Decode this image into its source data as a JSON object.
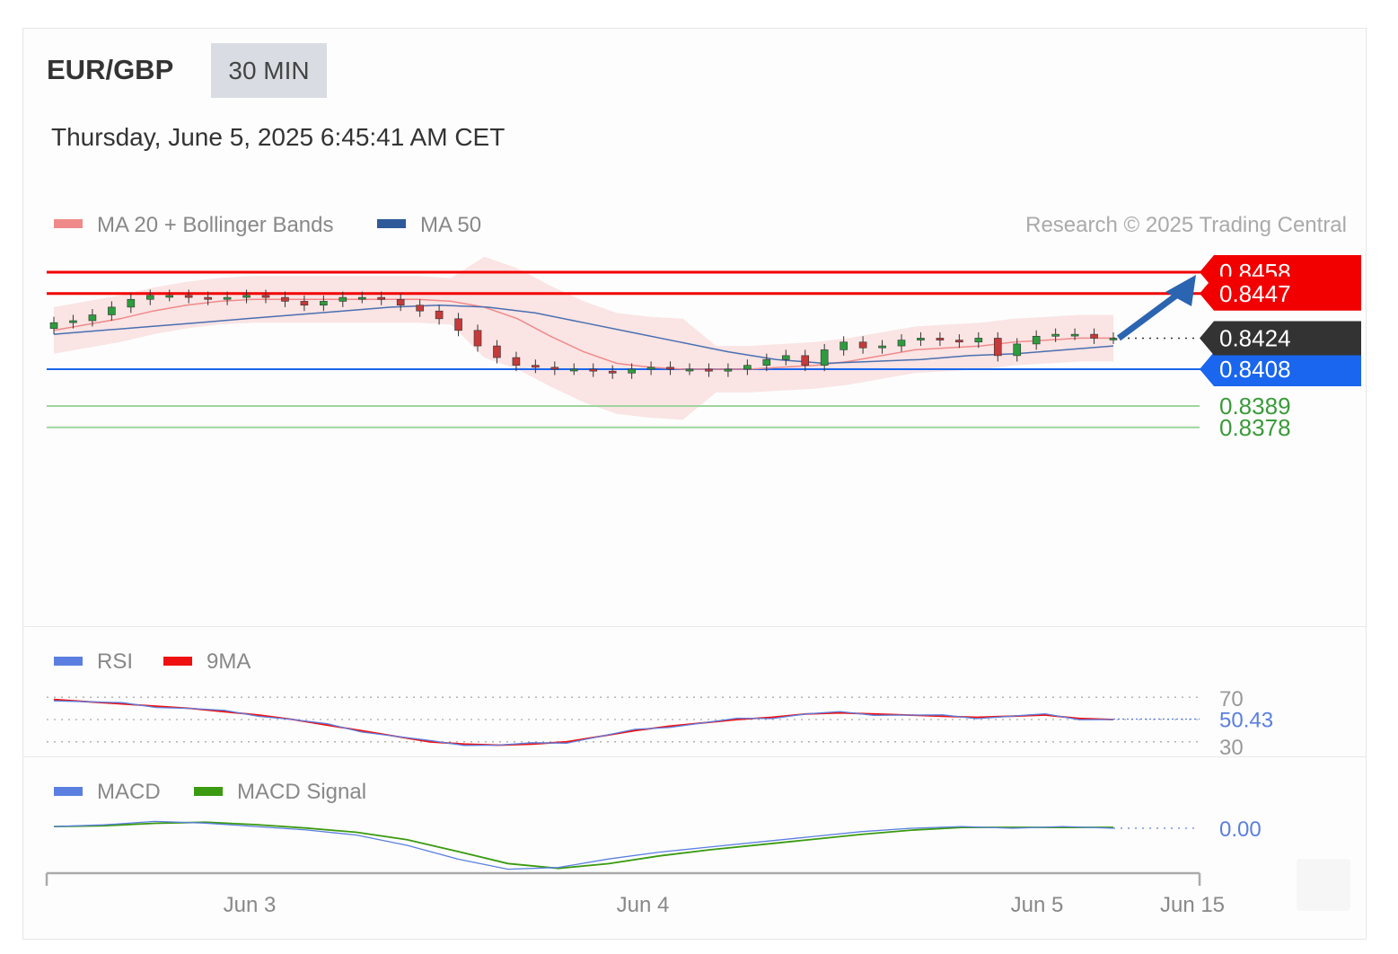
{
  "header": {
    "pair": "EUR/GBP",
    "timeframe": "30 MIN",
    "datetime": "Thursday, June 5, 2025 6:45:41 AM CET"
  },
  "legend": {
    "ma20": "MA 20 + Bollinger Bands",
    "ma50": "MA 50",
    "research": "Research © 2025 Trading Central",
    "rsi": "RSI",
    "rsi_ma": "9MA",
    "macd": "MACD",
    "macd_signal": "MACD Signal"
  },
  "colors": {
    "resistance": "#f20000",
    "support": "#1a66ee",
    "target": "#3a9a3a",
    "current": "#333333",
    "arrow": "#2b64b0",
    "up_candle": "#2e9c3e",
    "down_candle": "#c53a3a",
    "bollinger": "#f6c5c5",
    "ma20": "#f08a8a",
    "ma50": "#4a6fb0",
    "rsi": "#5b7fe0",
    "rsi_ma": "#f01010",
    "macd": "#5b7fe0",
    "macd_signal": "#3a9a10"
  },
  "chart_data": {
    "type": "line",
    "title": "EUR/GBP 30 MIN",
    "ylim": [
      0.8366,
      0.8471
    ],
    "x_ticks": [
      "Jun 3",
      "Jun 4",
      "Jun 5",
      "Jun 15"
    ],
    "price_levels": {
      "resistances": [
        0.8458,
        0.8447
      ],
      "current": 0.8424,
      "pivot": 0.8408,
      "supports": [
        0.8389,
        0.8378
      ]
    },
    "level_labels": [
      "0.8458",
      "0.8447",
      "0.8424",
      "0.8408",
      "0.8389",
      "0.8378"
    ],
    "price_series": {
      "name": "EUR/GBP",
      "close": [
        0.8432,
        0.8433,
        0.8436,
        0.844,
        0.8444,
        0.8446,
        0.8446,
        0.8445,
        0.8444,
        0.8445,
        0.8446,
        0.8445,
        0.8443,
        0.8441,
        0.8443,
        0.8445,
        0.8445,
        0.8444,
        0.8441,
        0.8438,
        0.8434,
        0.8428,
        0.842,
        0.8414,
        0.841,
        0.8409,
        0.8408,
        0.8408,
        0.8407,
        0.8406,
        0.8408,
        0.8409,
        0.8408,
        0.8408,
        0.8407,
        0.8408,
        0.841,
        0.8413,
        0.8415,
        0.841,
        0.8418,
        0.8422,
        0.8419,
        0.842,
        0.8423,
        0.8424,
        0.8423,
        0.8422,
        0.8424,
        0.8415,
        0.8421,
        0.8425,
        0.8426,
        0.8426,
        0.8424,
        0.8424
      ]
    },
    "ma20": [
      0.8428,
      0.8431,
      0.8434,
      0.8438,
      0.8441,
      0.8443,
      0.8444,
      0.8444,
      0.8444,
      0.8444,
      0.8444,
      0.8444,
      0.8443,
      0.844,
      0.8434,
      0.8425,
      0.8417,
      0.8411,
      0.8409,
      0.8408,
      0.8408,
      0.8408,
      0.8409,
      0.841,
      0.8412,
      0.8415,
      0.8418,
      0.8419,
      0.842,
      0.8422,
      0.8423,
      0.8424,
      0.8424
    ],
    "ma50": [
      0.8426,
      0.8428,
      0.843,
      0.8432,
      0.8434,
      0.8436,
      0.8438,
      0.844,
      0.8441,
      0.844,
      0.8437,
      0.8432,
      0.8427,
      0.8422,
      0.8417,
      0.8413,
      0.8411,
      0.8412,
      0.8413,
      0.8415,
      0.8416,
      0.8418,
      0.842
    ],
    "forecast_target": 0.8458,
    "rsi": {
      "name": "RSI",
      "last": "50.43",
      "levels": [
        "70",
        "30"
      ],
      "values": [
        68,
        66,
        64,
        62,
        60,
        57,
        54,
        50,
        45,
        40,
        35,
        30,
        28,
        27,
        28,
        30,
        35,
        40,
        44,
        47,
        50,
        52,
        55,
        56,
        55,
        54,
        53,
        52,
        53,
        54,
        51,
        50
      ]
    },
    "macd": {
      "name": "MACD",
      "last": "0.00",
      "values": [
        0.0001,
        0.0002,
        0.0004,
        0.0003,
        0.0001,
        -0.0001,
        -0.0004,
        -0.001,
        -0.0018,
        -0.0024,
        -0.0023,
        -0.0018,
        -0.0014,
        -0.0011,
        -0.0008,
        -0.0005,
        -0.0002,
        0.0,
        0.0001,
        0.0,
        0.0001,
        0.0
      ]
    }
  }
}
